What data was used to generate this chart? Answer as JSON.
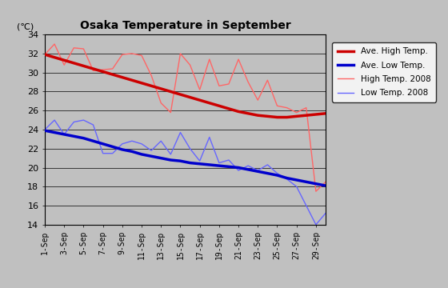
{
  "title": "Osaka Temperature in September",
  "ylabel": "(℃)",
  "ylim": [
    14,
    34
  ],
  "yticks": [
    14,
    16,
    18,
    20,
    22,
    24,
    26,
    28,
    30,
    32,
    34
  ],
  "days": [
    1,
    2,
    3,
    4,
    5,
    6,
    7,
    8,
    9,
    10,
    11,
    12,
    13,
    14,
    15,
    16,
    17,
    18,
    19,
    20,
    21,
    22,
    23,
    24,
    25,
    26,
    27,
    28,
    29,
    30
  ],
  "xtick_labels": [
    "1-Sep",
    "3-Sep",
    "5-Sep",
    "7-Sep",
    "9-Sep",
    "11-Sep",
    "13-Sep",
    "15-Sep",
    "17-Sep",
    "19-Sep",
    "21-Sep",
    "23-Sep",
    "25-Sep",
    "27-Sep",
    "29-Sep"
  ],
  "xtick_positions": [
    1,
    3,
    5,
    7,
    9,
    11,
    13,
    15,
    17,
    19,
    21,
    23,
    25,
    27,
    29
  ],
  "ave_high": [
    31.9,
    31.6,
    31.3,
    31.0,
    30.7,
    30.4,
    30.1,
    29.8,
    29.5,
    29.2,
    28.9,
    28.6,
    28.3,
    28.0,
    27.7,
    27.4,
    27.1,
    26.8,
    26.5,
    26.2,
    25.9,
    25.7,
    25.5,
    25.4,
    25.3,
    25.3,
    25.4,
    25.5,
    25.6,
    25.7
  ],
  "ave_low": [
    23.9,
    23.7,
    23.5,
    23.3,
    23.1,
    22.8,
    22.5,
    22.2,
    21.9,
    21.7,
    21.4,
    21.2,
    21.0,
    20.8,
    20.7,
    20.5,
    20.4,
    20.3,
    20.2,
    20.1,
    20.0,
    19.8,
    19.6,
    19.4,
    19.2,
    18.9,
    18.7,
    18.5,
    18.3,
    18.1
  ],
  "high_2008": [
    31.9,
    33.0,
    30.8,
    32.6,
    32.5,
    30.2,
    30.3,
    30.4,
    31.9,
    32.0,
    31.8,
    29.7,
    26.8,
    25.8,
    32.0,
    30.8,
    28.2,
    31.4,
    28.6,
    28.8,
    31.4,
    29.0,
    27.1,
    29.2,
    26.5,
    26.3,
    25.8,
    26.3,
    17.5,
    18.5
  ],
  "low_2008": [
    24.0,
    25.0,
    23.5,
    24.8,
    25.0,
    24.5,
    21.5,
    21.5,
    22.5,
    22.8,
    22.5,
    21.8,
    22.8,
    21.4,
    23.7,
    22.0,
    20.7,
    23.2,
    20.5,
    20.8,
    19.7,
    20.2,
    19.7,
    20.3,
    19.4,
    18.8,
    18.0,
    16.0,
    14.0,
    15.2
  ],
  "ave_high_color": "#cc0000",
  "ave_low_color": "#0000cc",
  "high_2008_color": "#ff6666",
  "low_2008_color": "#6666ff",
  "plot_bg_color": "#c0c0c0",
  "fig_left_bg": "#c0c0c0",
  "fig_right_bg": "#ffffff",
  "legend_labels": [
    "Ave. High Temp.",
    "Ave. Low Temp.",
    "High Temp. 2008",
    "Low Temp. 2008"
  ]
}
